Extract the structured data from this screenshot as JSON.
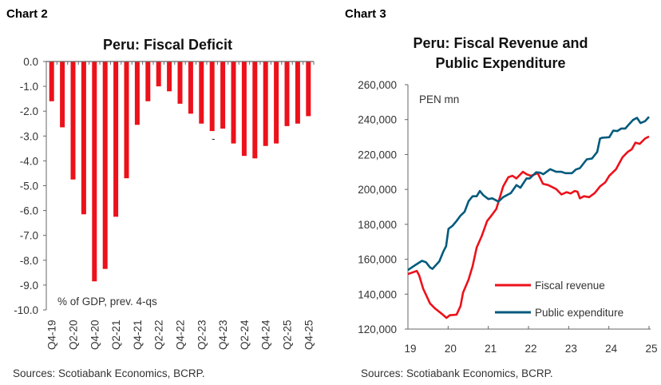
{
  "chart_data": [
    {
      "type": "bar",
      "header": "Chart 2",
      "title": "Peru: Fiscal Deficit",
      "annotation": "% of GDP, prev. 4-qs",
      "stray_mark": "-",
      "source": "Sources: Scotiabank Economics, BCRP.",
      "color": "#ec111a",
      "ylim": [
        -10,
        0
      ],
      "yticks": [
        "0.0",
        "-1.0",
        "-2.0",
        "-3.0",
        "-4.0",
        "-5.0",
        "-6.0",
        "-7.0",
        "-8.0",
        "-9.0",
        "-10.0"
      ],
      "categories": [
        "Q4-19",
        "Q1-20",
        "Q2-20",
        "Q3-20",
        "Q4-20",
        "Q1-21",
        "Q2-21",
        "Q3-21",
        "Q4-21",
        "Q1-22",
        "Q2-22",
        "Q3-22",
        "Q4-22",
        "Q1-23",
        "Q2-23",
        "Q3-23",
        "Q4-23",
        "Q1-24",
        "Q2-24",
        "Q3-24",
        "Q4-24",
        "Q1-25",
        "Q2-25",
        "Q3-25",
        "Q4-25"
      ],
      "xtick_labels": [
        "Q4-19",
        "",
        "Q2-20",
        "",
        "Q4-20",
        "",
        "Q2-21",
        "",
        "Q4-21",
        "",
        "Q2-22",
        "",
        "Q4-22",
        "",
        "Q2-23",
        "",
        "Q4-23",
        "",
        "Q2-24",
        "",
        "Q4-24",
        "",
        "Q2-25",
        "",
        "Q4-25"
      ],
      "values": [
        -1.6,
        -2.65,
        -4.75,
        -6.15,
        -8.85,
        -8.35,
        -6.25,
        -4.7,
        -2.55,
        -1.6,
        -1.0,
        -1.2,
        -1.7,
        -2.1,
        -2.5,
        -2.8,
        -2.7,
        -3.3,
        -3.8,
        -3.9,
        -3.4,
        -3.3,
        -2.6,
        -2.5,
        -2.2
      ]
    },
    {
      "type": "line",
      "header": "Chart 3",
      "title_lines": [
        "Peru: Fiscal Revenue and",
        "Public Expenditure"
      ],
      "ylabel": "PEN mn",
      "source": "Sources: Scotiabank Economics, BCRP.",
      "ylim": [
        120000,
        260000
      ],
      "xlim": [
        19,
        25
      ],
      "yticks": [
        "260,000",
        "240,000",
        "220,000",
        "200,000",
        "180,000",
        "160,000",
        "140,000",
        "120,000"
      ],
      "xticks": [
        "19",
        "20",
        "21",
        "22",
        "23",
        "24",
        "25"
      ],
      "legend_position": "bottom-right",
      "series": [
        {
          "name": "Fiscal revenue",
          "color": "#ec111a",
          "x": [
            19.0,
            19.22,
            19.28,
            19.38,
            19.55,
            19.68,
            19.85,
            19.96,
            20.04,
            20.21,
            20.31,
            20.37,
            20.51,
            20.61,
            20.71,
            20.84,
            20.97,
            21.1,
            21.2,
            21.37,
            21.5,
            21.6,
            21.7,
            21.86,
            21.96,
            22.06,
            22.23,
            22.36,
            22.49,
            22.69,
            22.82,
            22.95,
            23.05,
            23.15,
            23.22,
            23.28,
            23.38,
            23.51,
            23.65,
            23.78,
            23.91,
            24.01,
            24.18,
            24.34,
            24.47,
            24.57,
            24.66,
            24.77,
            24.9,
            25.0
          ],
          "y": [
            151500,
            153300,
            150700,
            143100,
            134700,
            131700,
            128600,
            126400,
            127900,
            128300,
            133200,
            140800,
            148400,
            156000,
            166700,
            173500,
            181900,
            185700,
            188800,
            201700,
            207000,
            207800,
            206300,
            210100,
            208600,
            207800,
            209300,
            203200,
            202500,
            200200,
            197100,
            198400,
            197700,
            199100,
            198700,
            194900,
            196100,
            195600,
            197900,
            201700,
            204000,
            207800,
            211600,
            218400,
            221500,
            223000,
            226800,
            226100,
            229100,
            230300
          ]
        },
        {
          "name": "Public expenditure",
          "color": "#005a7c",
          "x": [
            19.0,
            19.19,
            19.35,
            19.45,
            19.55,
            19.61,
            19.78,
            19.88,
            19.95,
            20.01,
            20.11,
            20.21,
            20.31,
            20.41,
            20.51,
            20.61,
            20.71,
            20.79,
            20.87,
            21.0,
            21.1,
            21.25,
            21.37,
            21.56,
            21.7,
            21.8,
            21.95,
            22.03,
            22.19,
            22.29,
            22.37,
            22.54,
            22.69,
            22.82,
            22.92,
            23.08,
            23.18,
            23.28,
            23.45,
            23.58,
            23.71,
            23.78,
            23.84,
            24.01,
            24.11,
            24.21,
            24.31,
            24.41,
            24.51,
            24.6,
            24.7,
            24.79,
            24.9,
            25.0
          ],
          "y": [
            153800,
            156800,
            159100,
            158300,
            155300,
            154500,
            158800,
            164400,
            167500,
            177400,
            179200,
            181900,
            185000,
            187200,
            193300,
            196100,
            196100,
            199100,
            196800,
            194500,
            194900,
            193000,
            195600,
            197900,
            202500,
            201000,
            206300,
            206300,
            209800,
            209600,
            208700,
            211600,
            210100,
            210100,
            209300,
            209300,
            211400,
            212200,
            217200,
            217700,
            221500,
            229100,
            229600,
            229900,
            233700,
            233400,
            234900,
            234900,
            237500,
            239800,
            241000,
            238000,
            239100,
            241600
          ]
        }
      ]
    }
  ]
}
